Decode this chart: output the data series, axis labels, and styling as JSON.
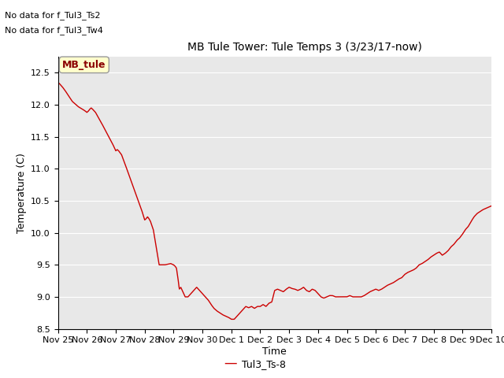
{
  "title": "MB Tule Tower: Tule Temps 3 (3/23/17-now)",
  "xlabel": "Time",
  "ylabel": "Temperature (C)",
  "ylim": [
    8.5,
    12.75
  ],
  "yticks": [
    8.5,
    9.0,
    9.5,
    10.0,
    10.5,
    11.0,
    11.5,
    12.0,
    12.5
  ],
  "line_color": "#cc0000",
  "line_width": 1.0,
  "bg_color": "#e8e8e8",
  "legend_label": "Tul3_Ts-8",
  "legend_line_color": "#cc0000",
  "no_data_text1": "No data for f_Tul3_Ts2",
  "no_data_text2": "No data for f_Tul3_Tw4",
  "tooltip_text": "MB_tule",
  "xtick_labels": [
    "Nov 25",
    "Nov 26",
    "Nov 27",
    "Nov 28",
    "Nov 29",
    "Nov 30",
    "Dec 1",
    "Dec 2",
    "Dec 3",
    "Dec 4",
    "Dec 5",
    "Dec 6",
    "Dec 7",
    "Dec 8",
    "Dec 9",
    "Dec 10"
  ]
}
